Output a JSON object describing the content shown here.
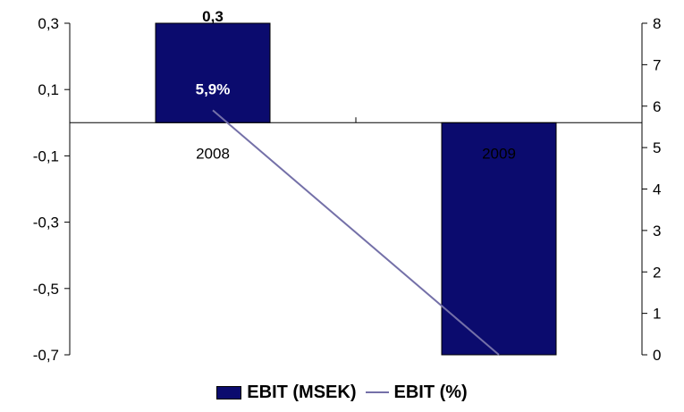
{
  "chart_data": {
    "type": "bar",
    "categories": [
      "2008",
      "2009"
    ],
    "series": [
      {
        "name": "EBIT (MSEK)",
        "kind": "bar",
        "axis": "left",
        "values": [
          0.3,
          -0.7
        ],
        "data_labels": [
          "0,3",
          ""
        ]
      },
      {
        "name": "EBIT (%)",
        "kind": "line",
        "axis": "right",
        "values": [
          5.9,
          0
        ],
        "data_labels": [
          "5,9%",
          ""
        ]
      }
    ],
    "y_left": {
      "ylim": [
        -0.7,
        0.3
      ],
      "ticks": [
        -0.7,
        -0.5,
        -0.3,
        -0.1,
        0.1,
        0.3
      ],
      "tick_labels": [
        "-0,7",
        "-0,5",
        "-0,3",
        "-0,1",
        "0,1",
        "0,3"
      ]
    },
    "y_right": {
      "ylim": [
        0,
        8
      ],
      "ticks": [
        0,
        1,
        2,
        3,
        4,
        5,
        6,
        7,
        8
      ],
      "tick_labels": [
        "0",
        "1",
        "2",
        "3",
        "4",
        "5",
        "6",
        "7",
        "8"
      ]
    },
    "legend": {
      "position": "bottom"
    },
    "grid": false,
    "colors": {
      "bar": "#0b0b6e",
      "line": "#7470a8",
      "axis": "#000000"
    }
  }
}
